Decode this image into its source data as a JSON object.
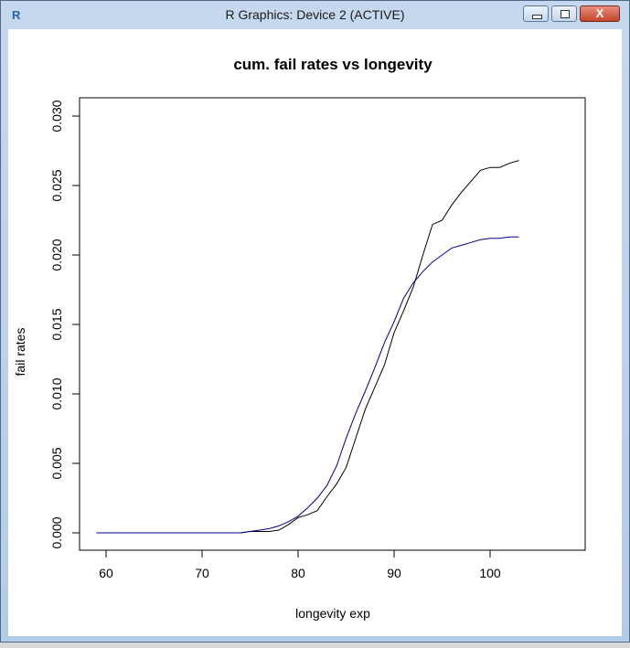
{
  "window": {
    "title": "R Graphics: Device 2 (ACTIVE)",
    "icon": "r-logo-icon",
    "buttons": [
      "minimize",
      "maximize",
      "close"
    ],
    "close_glyph": "X"
  },
  "chart_data": {
    "type": "line",
    "title": "cum. fail rates vs longevity",
    "xlabel": "longevity exp",
    "ylabel": "fail rates",
    "xlim": [
      57.5,
      105
    ],
    "ylim": [
      -0.0012,
      0.0312
    ],
    "xticks": [
      60,
      70,
      80,
      90,
      100
    ],
    "yticks": [
      0.0,
      0.005,
      0.01,
      0.015,
      0.02,
      0.025,
      0.03
    ],
    "ytick_labels": [
      "0.000",
      "0.005",
      "0.010",
      "0.015",
      "0.020",
      "0.025",
      "0.030"
    ],
    "grid": false,
    "legend": null,
    "x": [
      59,
      60,
      61,
      62,
      63,
      64,
      65,
      66,
      67,
      68,
      69,
      70,
      71,
      72,
      73,
      74,
      75,
      76,
      77,
      78,
      79,
      80,
      81,
      82,
      83,
      84,
      85,
      86,
      87,
      88,
      89,
      90,
      91,
      92,
      93,
      94,
      95,
      96,
      97,
      98,
      99,
      100,
      101,
      102,
      103
    ],
    "series": [
      {
        "name": "black",
        "color": "#000000",
        "values": [
          0,
          0,
          0,
          0,
          0,
          0,
          0,
          0,
          0,
          0,
          0,
          0,
          0,
          0,
          0,
          0,
          0.0001,
          0.0001,
          0.0001,
          0.0002,
          0.0006,
          0.0011,
          0.0013,
          0.0016,
          0.0026,
          0.0035,
          0.0047,
          0.0068,
          0.0089,
          0.0105,
          0.0121,
          0.0144,
          0.016,
          0.0177,
          0.02,
          0.0222,
          0.0225,
          0.0236,
          0.0245,
          0.0253,
          0.0261,
          0.0263,
          0.0263,
          0.0266,
          0.0268
        ]
      },
      {
        "name": "blue",
        "color": "#00008b",
        "values": [
          0,
          0,
          0,
          0,
          0,
          0,
          0,
          0,
          0,
          0,
          0,
          0,
          0,
          0,
          0,
          0,
          0.0001,
          0.0002,
          0.0003,
          0.0005,
          0.0008,
          0.0012,
          0.0018,
          0.0025,
          0.0034,
          0.0048,
          0.0068,
          0.0086,
          0.0102,
          0.0119,
          0.0137,
          0.0152,
          0.0169,
          0.018,
          0.0188,
          0.0195,
          0.02,
          0.0205,
          0.0207,
          0.0209,
          0.0211,
          0.0212,
          0.0212,
          0.0213,
          0.0213
        ]
      }
    ]
  }
}
